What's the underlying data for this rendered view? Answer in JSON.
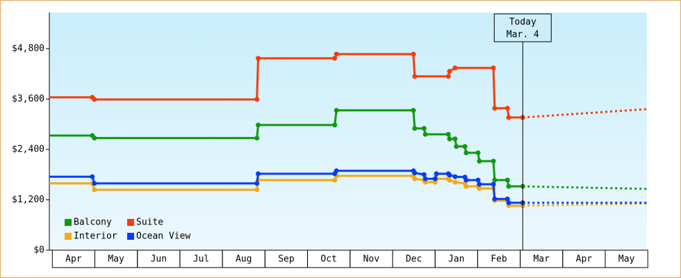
{
  "chart_data": {
    "type": "line",
    "step": true,
    "xlim": [
      -0.07,
      13.98
    ],
    "ylim": [
      0,
      5660
    ],
    "xticks": [
      {
        "value": 0.5,
        "label": "Apr"
      },
      {
        "value": 1.5,
        "label": "May"
      },
      {
        "value": 2.5,
        "label": "Jun"
      },
      {
        "value": 3.5,
        "label": "Jul"
      },
      {
        "value": 4.5,
        "label": "Aug"
      },
      {
        "value": 5.5,
        "label": "Sep"
      },
      {
        "value": 6.5,
        "label": "Oct"
      },
      {
        "value": 7.5,
        "label": "Nov"
      },
      {
        "value": 8.5,
        "label": "Dec"
      },
      {
        "value": 9.5,
        "label": "Jan"
      },
      {
        "value": 10.5,
        "label": "Feb"
      },
      {
        "value": 11.5,
        "label": "Mar"
      },
      {
        "value": 12.5,
        "label": "Apr"
      },
      {
        "value": 13.5,
        "label": "May"
      }
    ],
    "yticks": [
      {
        "value": 0,
        "label": "$0"
      },
      {
        "value": 1200,
        "label": "$1,200"
      },
      {
        "value": 2400,
        "label": "$2,400"
      },
      {
        "value": 3600,
        "label": "$3,600"
      },
      {
        "value": 4800,
        "label": "$4,800"
      }
    ],
    "annotation": {
      "x": 11.06,
      "lines": [
        "Today",
        "Mar. 4"
      ]
    },
    "series": [
      {
        "name": "Balcony",
        "color": "#109910",
        "x": [
          -0.07,
          0.94,
          0.99,
          4.81,
          4.84,
          6.64,
          6.68,
          8.49,
          8.52,
          8.74,
          8.77,
          9.31,
          9.34,
          9.47,
          9.5,
          9.7,
          9.73,
          10.01,
          10.04,
          10.37,
          10.4,
          10.7,
          10.73,
          11.06
        ],
        "values": [
          2730,
          2730,
          2670,
          2670,
          2980,
          2980,
          3330,
          3330,
          2900,
          2900,
          2760,
          2760,
          2650,
          2650,
          2470,
          2470,
          2320,
          2320,
          2120,
          2120,
          1670,
          1670,
          1520,
          1520
        ],
        "projection": {
          "x": [
            11.06,
            13.98
          ],
          "values": [
            1520,
            1460
          ]
        }
      },
      {
        "name": "Suite",
        "color": "#f53c0a",
        "x": [
          -0.07,
          0.94,
          0.99,
          4.81,
          4.84,
          6.64,
          6.68,
          8.49,
          8.52,
          9.31,
          9.34,
          9.47,
          10.37,
          10.4,
          10.7,
          10.73,
          11.06
        ],
        "values": [
          3640,
          3640,
          3590,
          3590,
          4570,
          4570,
          4670,
          4670,
          4140,
          4140,
          4260,
          4340,
          4340,
          3380,
          3380,
          3160,
          3160
        ],
        "projection": {
          "x": [
            11.06,
            13.98
          ],
          "values": [
            3160,
            3360
          ]
        }
      },
      {
        "name": "Interior",
        "color": "#f5a812",
        "x": [
          -0.07,
          0.94,
          0.99,
          4.81,
          4.84,
          6.64,
          6.68,
          8.49,
          8.52,
          8.74,
          8.77,
          9.0,
          9.03,
          9.31,
          9.34,
          9.47,
          9.7,
          9.73,
          10.01,
          10.04,
          10.37,
          10.4,
          10.7,
          10.73,
          11.06
        ],
        "values": [
          1590,
          1590,
          1440,
          1440,
          1670,
          1670,
          1770,
          1770,
          1700,
          1670,
          1620,
          1620,
          1700,
          1700,
          1670,
          1620,
          1590,
          1520,
          1520,
          1470,
          1470,
          1180,
          1180,
          1060,
          1060
        ],
        "projection": {
          "x": [
            11.06,
            13.98
          ],
          "values": [
            1060,
            1110
          ]
        }
      },
      {
        "name": "Ocean View",
        "color": "#0a3cf0",
        "x": [
          -0.07,
          0.94,
          0.99,
          4.81,
          4.84,
          6.64,
          6.68,
          8.49,
          8.52,
          8.74,
          8.77,
          9.0,
          9.03,
          9.31,
          9.34,
          9.47,
          9.7,
          9.73,
          10.01,
          10.04,
          10.37,
          10.4,
          10.7,
          10.73,
          11.06
        ],
        "values": [
          1750,
          1750,
          1590,
          1590,
          1820,
          1820,
          1890,
          1890,
          1840,
          1800,
          1700,
          1700,
          1820,
          1820,
          1790,
          1750,
          1740,
          1670,
          1670,
          1570,
          1570,
          1220,
          1220,
          1130,
          1130
        ],
        "projection": {
          "x": [
            11.06,
            13.98
          ],
          "values": [
            1130,
            1130
          ]
        }
      }
    ]
  }
}
